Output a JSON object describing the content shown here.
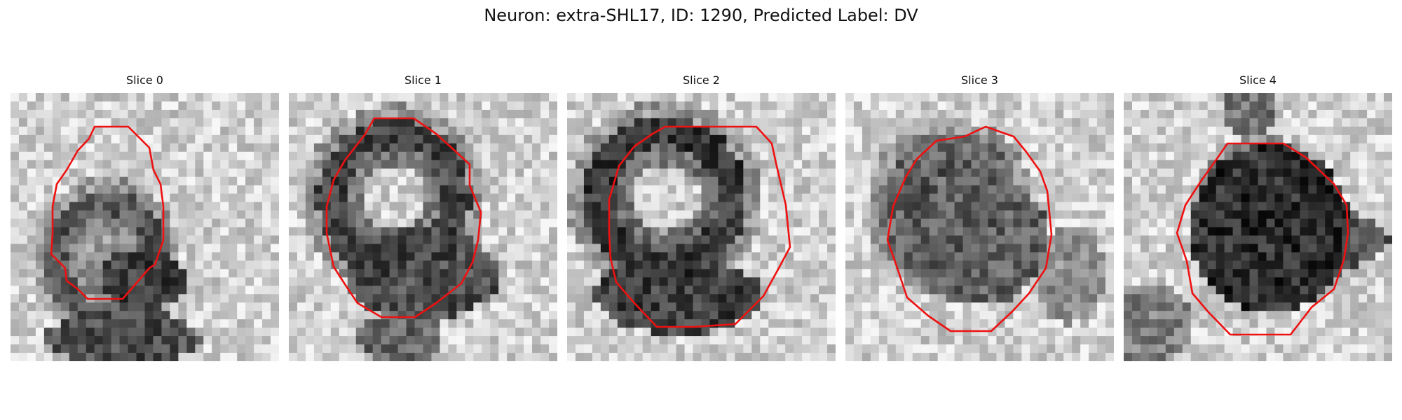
{
  "figure": {
    "title": "Neuron: extra-SHL17, ID: 1290, Predicted Label: DV"
  },
  "colors": {
    "outline": "#ee1111",
    "background": "#ffffff"
  },
  "panels": [
    {
      "title": "Slice 0"
    },
    {
      "title": "Slice 1"
    },
    {
      "title": "Slice 2"
    },
    {
      "title": "Slice 3"
    },
    {
      "title": "Slice 4"
    }
  ]
}
